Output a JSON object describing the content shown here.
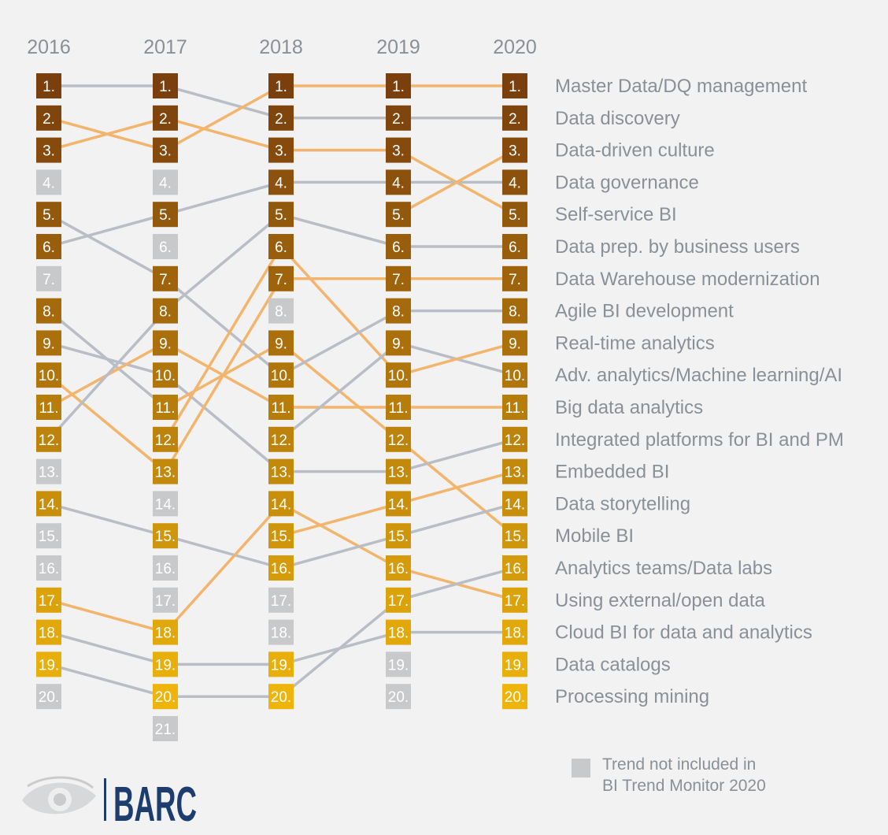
{
  "chart_data": {
    "type": "bump",
    "years": [
      "2016",
      "2017",
      "2018",
      "2019",
      "2020"
    ],
    "rank_count": [
      20,
      21,
      20,
      20,
      20
    ],
    "excluded_ranks": {
      "2016": [
        4,
        7,
        13,
        15,
        16,
        20
      ],
      "2017": [
        4,
        6,
        14,
        16,
        17,
        21
      ],
      "2018": [
        8,
        17,
        18
      ],
      "2019": [
        19,
        20
      ],
      "2020": []
    },
    "links": [
      {
        "from_year": "2016",
        "from": 1,
        "to": 1,
        "color": "gray"
      },
      {
        "from_year": "2016",
        "from": 2,
        "to": 3,
        "color": "orange"
      },
      {
        "from_year": "2016",
        "from": 3,
        "to": 2,
        "color": "orange"
      },
      {
        "from_year": "2016",
        "from": 5,
        "to": 7,
        "color": "gray"
      },
      {
        "from_year": "2016",
        "from": 6,
        "to": 5,
        "color": "gray"
      },
      {
        "from_year": "2016",
        "from": 8,
        "to": 11,
        "color": "gray"
      },
      {
        "from_year": "2016",
        "from": 9,
        "to": 10,
        "color": "gray"
      },
      {
        "from_year": "2016",
        "from": 10,
        "to": 13,
        "color": "orange"
      },
      {
        "from_year": "2016",
        "from": 11,
        "to": 9,
        "color": "orange"
      },
      {
        "from_year": "2016",
        "from": 12,
        "to": 8,
        "color": "gray"
      },
      {
        "from_year": "2016",
        "from": 14,
        "to": 15,
        "color": "gray"
      },
      {
        "from_year": "2016",
        "from": 17,
        "to": 18,
        "color": "orange"
      },
      {
        "from_year": "2016",
        "from": 18,
        "to": 19,
        "color": "gray"
      },
      {
        "from_year": "2016",
        "from": 19,
        "to": 20,
        "color": "gray"
      },
      {
        "from_year": "2017",
        "from": 1,
        "to": 2,
        "color": "gray"
      },
      {
        "from_year": "2017",
        "from": 2,
        "to": 3,
        "color": "orange"
      },
      {
        "from_year": "2017",
        "from": 3,
        "to": 1,
        "color": "orange"
      },
      {
        "from_year": "2017",
        "from": 5,
        "to": 4,
        "color": "gray"
      },
      {
        "from_year": "2017",
        "from": 7,
        "to": 10,
        "color": "gray"
      },
      {
        "from_year": "2017",
        "from": 8,
        "to": 5,
        "color": "gray"
      },
      {
        "from_year": "2017",
        "from": 9,
        "to": 11,
        "color": "orange"
      },
      {
        "from_year": "2017",
        "from": 10,
        "to": 13,
        "color": "gray"
      },
      {
        "from_year": "2017",
        "from": 11,
        "to": 9,
        "color": "orange"
      },
      {
        "from_year": "2017",
        "from": 12,
        "to": 6,
        "color": "orange"
      },
      {
        "from_year": "2017",
        "from": 13,
        "to": 7,
        "color": "orange"
      },
      {
        "from_year": "2017",
        "from": 15,
        "to": 16,
        "color": "gray"
      },
      {
        "from_year": "2017",
        "from": 18,
        "to": 14,
        "color": "orange"
      },
      {
        "from_year": "2017",
        "from": 19,
        "to": 19,
        "color": "gray"
      },
      {
        "from_year": "2017",
        "from": 20,
        "to": 20,
        "color": "gray"
      },
      {
        "from_year": "2018",
        "from": 1,
        "to": 1,
        "color": "orange"
      },
      {
        "from_year": "2018",
        "from": 2,
        "to": 2,
        "color": "gray"
      },
      {
        "from_year": "2018",
        "from": 3,
        "to": 3,
        "color": "orange"
      },
      {
        "from_year": "2018",
        "from": 4,
        "to": 4,
        "color": "gray"
      },
      {
        "from_year": "2018",
        "from": 5,
        "to": 6,
        "color": "gray"
      },
      {
        "from_year": "2018",
        "from": 6,
        "to": 10,
        "color": "orange"
      },
      {
        "from_year": "2018",
        "from": 7,
        "to": 7,
        "color": "orange"
      },
      {
        "from_year": "2018",
        "from": 9,
        "to": 12,
        "color": "orange"
      },
      {
        "from_year": "2018",
        "from": 10,
        "to": 8,
        "color": "gray"
      },
      {
        "from_year": "2018",
        "from": 11,
        "to": 11,
        "color": "orange"
      },
      {
        "from_year": "2018",
        "from": 12,
        "to": 9,
        "color": "gray"
      },
      {
        "from_year": "2018",
        "from": 13,
        "to": 13,
        "color": "gray"
      },
      {
        "from_year": "2018",
        "from": 14,
        "to": 16,
        "color": "orange"
      },
      {
        "from_year": "2018",
        "from": 15,
        "to": 14,
        "color": "orange"
      },
      {
        "from_year": "2018",
        "from": 16,
        "to": 15,
        "color": "gray"
      },
      {
        "from_year": "2018",
        "from": 19,
        "to": 18,
        "color": "gray"
      },
      {
        "from_year": "2018",
        "from": 20,
        "to": 17,
        "color": "gray"
      },
      {
        "from_year": "2019",
        "from": 1,
        "to": 1,
        "color": "orange"
      },
      {
        "from_year": "2019",
        "from": 2,
        "to": 2,
        "color": "gray"
      },
      {
        "from_year": "2019",
        "from": 3,
        "to": 5,
        "color": "orange"
      },
      {
        "from_year": "2019",
        "from": 4,
        "to": 4,
        "color": "gray"
      },
      {
        "from_year": "2019",
        "from": 5,
        "to": 3,
        "color": "orange"
      },
      {
        "from_year": "2019",
        "from": 6,
        "to": 6,
        "color": "gray"
      },
      {
        "from_year": "2019",
        "from": 7,
        "to": 7,
        "color": "orange"
      },
      {
        "from_year": "2019",
        "from": 8,
        "to": 8,
        "color": "gray"
      },
      {
        "from_year": "2019",
        "from": 9,
        "to": 10,
        "color": "gray"
      },
      {
        "from_year": "2019",
        "from": 10,
        "to": 9,
        "color": "orange"
      },
      {
        "from_year": "2019",
        "from": 11,
        "to": 11,
        "color": "orange"
      },
      {
        "from_year": "2019",
        "from": 12,
        "to": 15,
        "color": "orange"
      },
      {
        "from_year": "2019",
        "from": 13,
        "to": 12,
        "color": "gray"
      },
      {
        "from_year": "2019",
        "from": 14,
        "to": 13,
        "color": "orange"
      },
      {
        "from_year": "2019",
        "from": 15,
        "to": 14,
        "color": "gray"
      },
      {
        "from_year": "2019",
        "from": 16,
        "to": 17,
        "color": "orange"
      },
      {
        "from_year": "2019",
        "from": 17,
        "to": 16,
        "color": "gray"
      },
      {
        "from_year": "2019",
        "from": 18,
        "to": 18,
        "color": "gray"
      }
    ],
    "trends_2020": [
      "Master Data/DQ management",
      "Data discovery",
      "Data-driven culture",
      "Data governance",
      "Self-service BI",
      "Data prep. by business users",
      "Data Warehouse modernization",
      "Agile BI development",
      "Real-time analytics",
      "Adv. analytics/Machine learning/AI",
      "Big data analytics",
      "Integrated platforms for BI and PM",
      "Embedded BI",
      "Data storytelling",
      "Mobile BI",
      "Analytics teams/Data labs",
      "Using external/open data",
      "Cloud BI for data and analytics",
      "Data catalogs",
      "Processing mining"
    ],
    "colors": {
      "rank_dark": "#7a3f0c",
      "rank_light": "#eeb40a",
      "excluded": "#c8c9cb",
      "line_orange": "#f3b46c",
      "line_gray": "#b9bdc6",
      "text": "#8a9097",
      "brand": "#1d3d6e"
    }
  },
  "legend": {
    "line1": "Trend not included in",
    "line2": "BI Trend Monitor 2020"
  },
  "brand": {
    "name": "BARC",
    "logo_icon": "eye-logo-icon"
  }
}
